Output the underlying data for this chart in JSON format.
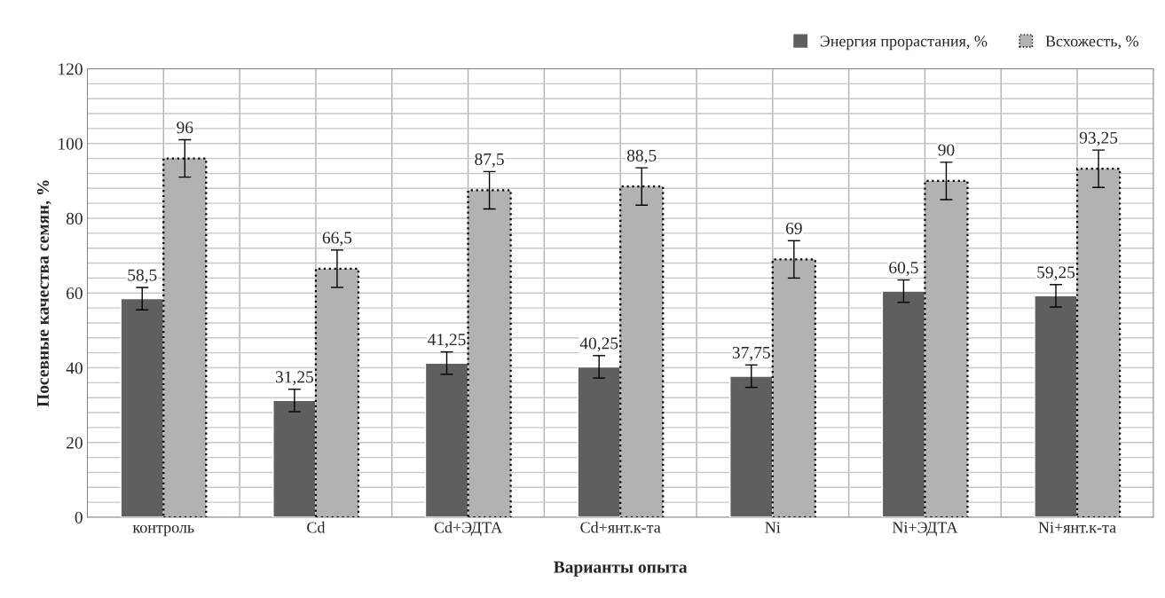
{
  "chart_data": {
    "type": "bar",
    "xlabel": "Варианты опыта",
    "ylabel": "Посевные качества семян, %",
    "categories": [
      "контроль",
      "Cd",
      "Cd+ЭДТА",
      "Cd+янт.к-та",
      "Ni",
      "Ni+ЭДТА",
      "Ni+янт.к-та"
    ],
    "series": [
      {
        "name": "Энергия прорастания, %",
        "color": "#5f5f5f",
        "values": [
          58.5,
          31.25,
          41.25,
          40.25,
          37.75,
          60.5,
          59.25
        ],
        "errors": [
          3,
          3,
          3,
          3,
          3,
          3,
          3
        ],
        "value_labels": [
          "58,5",
          "31,25",
          "41,25",
          "40,25",
          "37,75",
          "60,5",
          "59,25"
        ]
      },
      {
        "name": "Всхожесть, %",
        "color": "#b2b2b2",
        "line_style": "dotted",
        "values": [
          96,
          66.5,
          87.5,
          88.5,
          69,
          90,
          93.25
        ],
        "errors": [
          5,
          5,
          5,
          5,
          5,
          5,
          5
        ],
        "value_labels": [
          "96",
          "66,5",
          "87,5",
          "88,5",
          "69",
          "90",
          "93,25"
        ]
      }
    ],
    "ylim": [
      0,
      120
    ],
    "yticks": [
      0,
      {
        "value": 4,
        "label": null
      },
      {
        "value": 8,
        "label": null
      },
      {
        "value": 12,
        "label": null
      },
      {
        "value": 16,
        "label": null
      },
      20,
      {
        "value": 24,
        "label": null
      },
      {
        "value": 28,
        "label": null
      },
      {
        "value": 32,
        "label": null
      },
      {
        "value": 36,
        "label": null
      },
      40,
      {
        "value": 44,
        "label": null
      },
      {
        "value": 48,
        "label": null
      },
      {
        "value": 52,
        "label": null
      },
      {
        "value": 56,
        "label": null
      },
      60,
      {
        "value": 64,
        "label": null
      },
      {
        "value": 68,
        "label": null
      },
      {
        "value": 72,
        "label": null
      },
      {
        "value": 76,
        "label": null
      },
      80,
      {
        "value": 84,
        "label": null
      },
      {
        "value": 88,
        "label": null
      },
      {
        "value": 92,
        "label": null
      },
      {
        "value": 96,
        "label": null
      },
      100,
      {
        "value": 104,
        "label": null
      },
      {
        "value": 108,
        "label": null
      },
      {
        "value": 112,
        "label": null
      },
      {
        "value": 116,
        "label": null
      },
      120
    ],
    "grid": true,
    "legend": "top right"
  }
}
